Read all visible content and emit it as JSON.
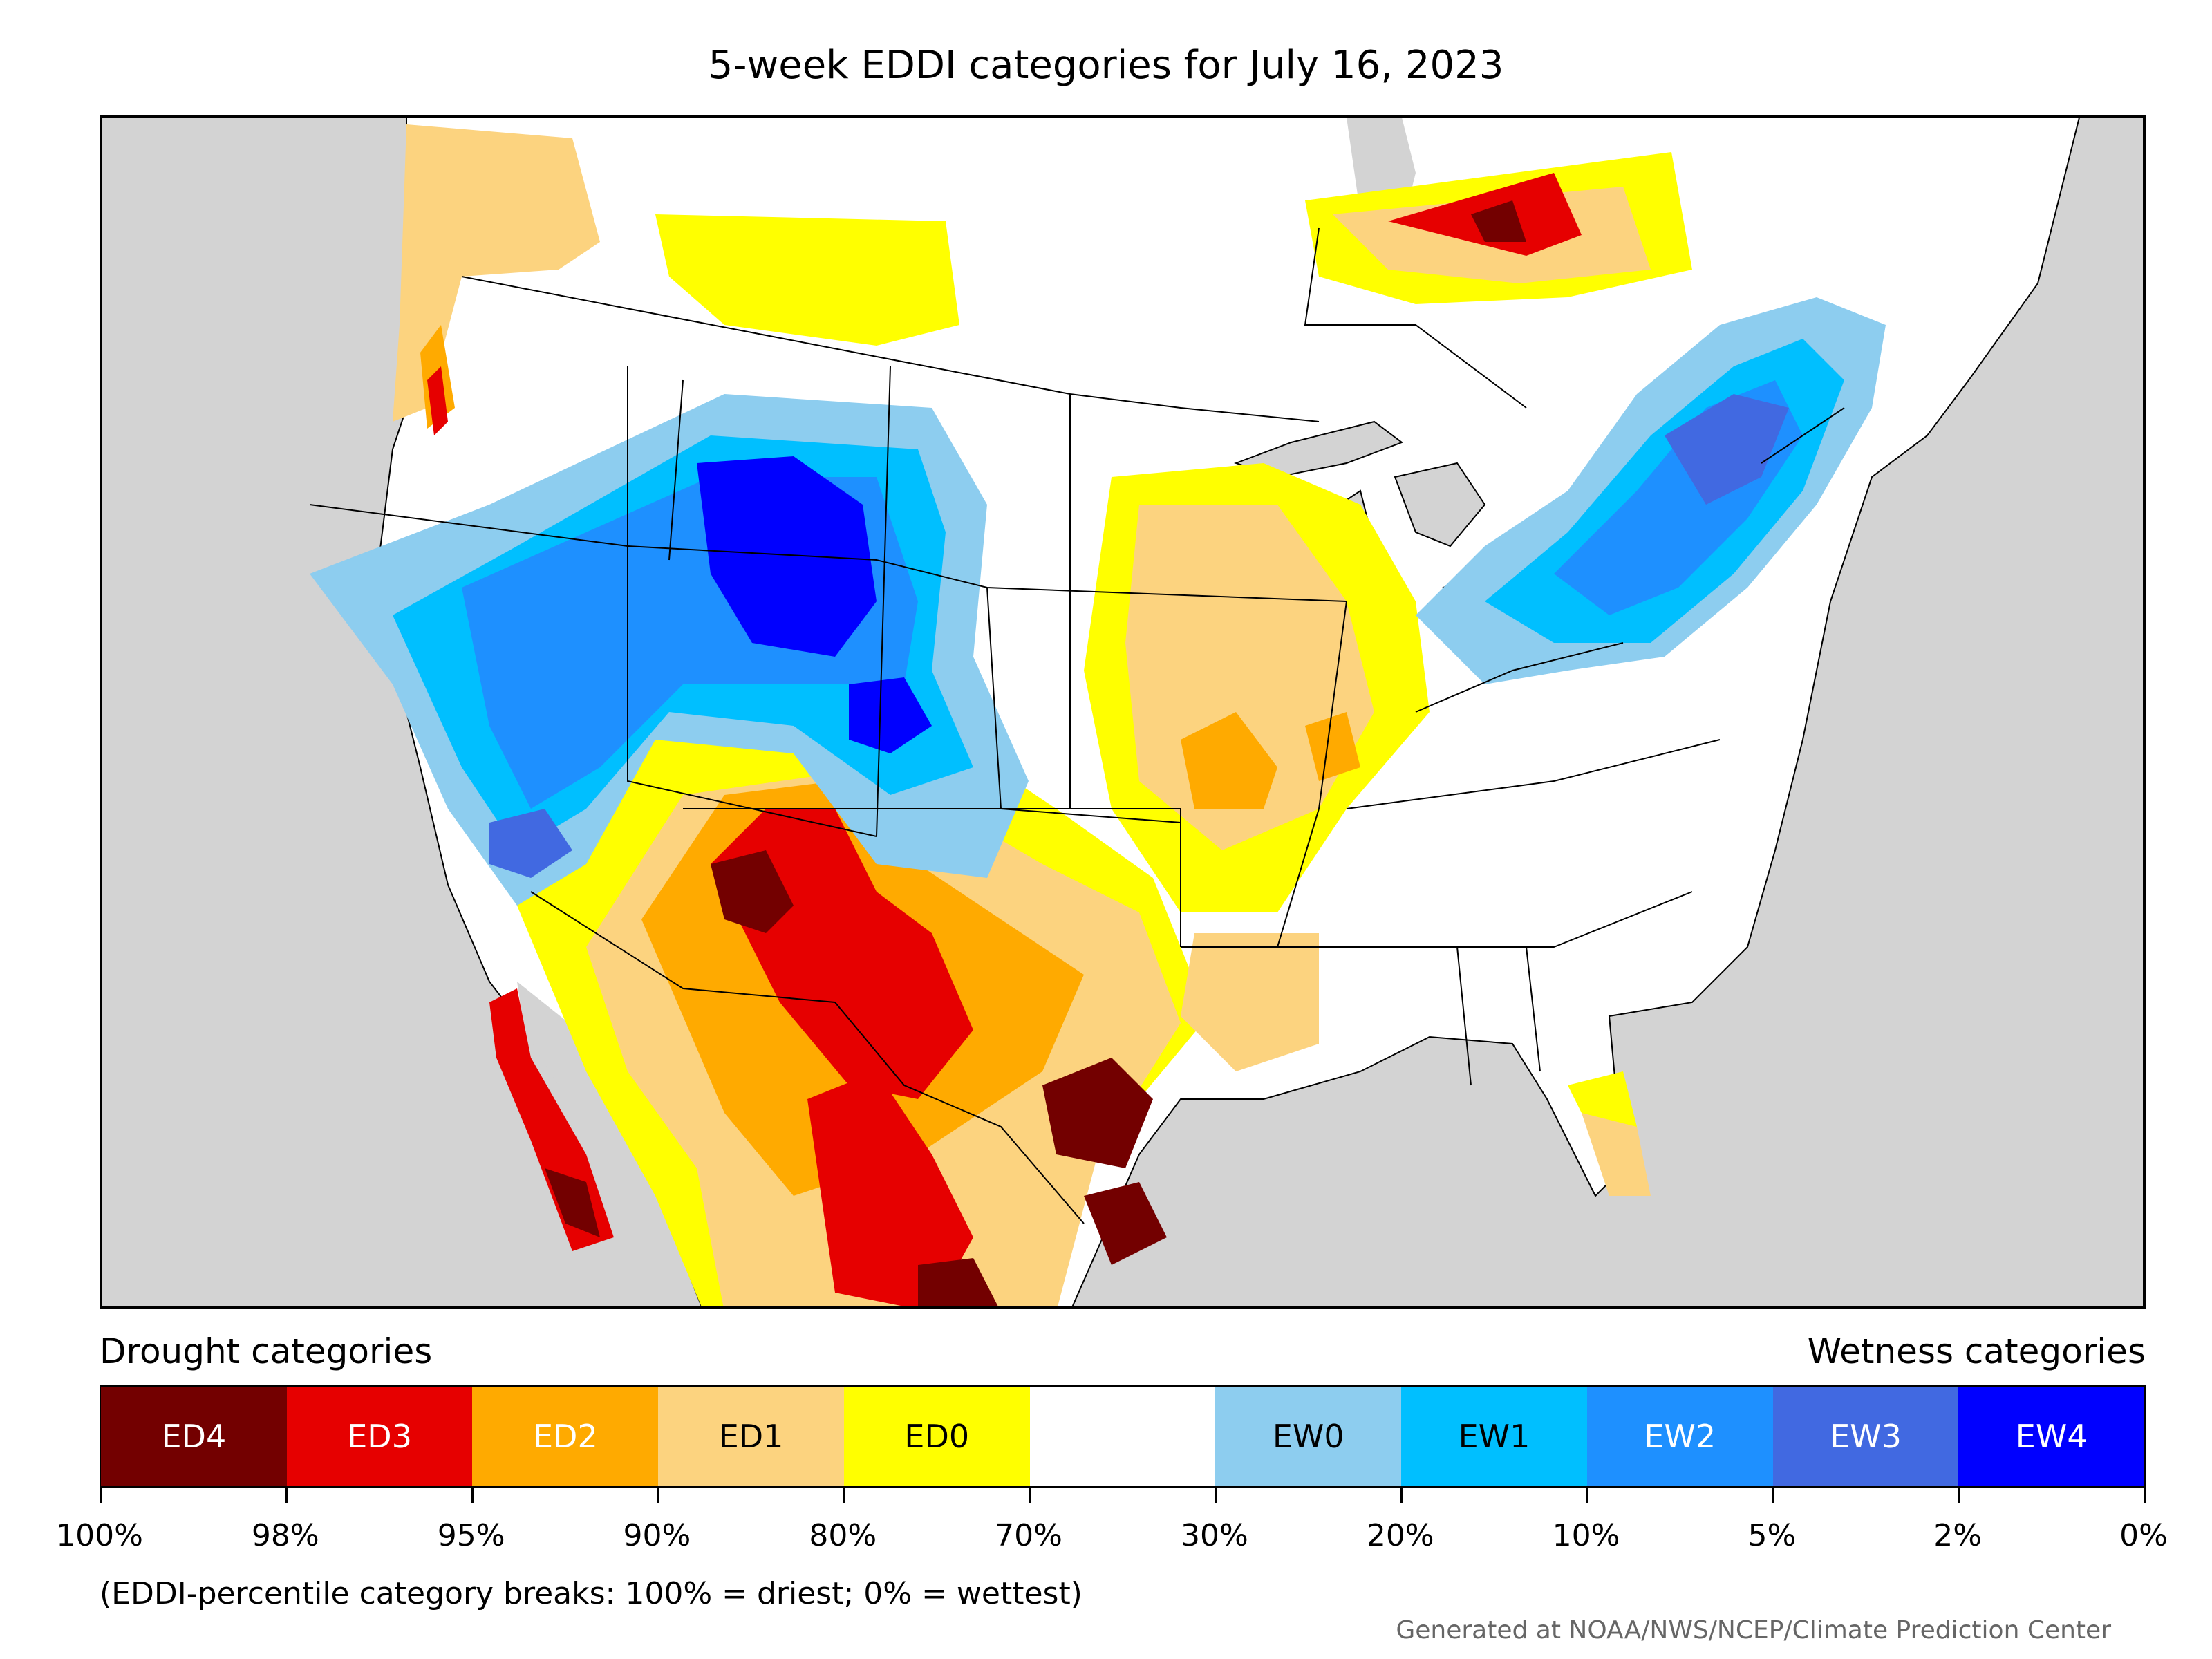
{
  "title": "5-week EDDI categories for July 16, 2023",
  "legend": {
    "drought_heading": "Drought categories",
    "wetness_heading": "Wetness categories",
    "categories": [
      {
        "label": "ED4",
        "color": "#730000",
        "text_color": "#ffffff"
      },
      {
        "label": "ED3",
        "color": "#e60000",
        "text_color": "#ffffff"
      },
      {
        "label": "ED2",
        "color": "#ffaa00",
        "text_color": "#ffffff"
      },
      {
        "label": "ED1",
        "color": "#fcd37f",
        "text_color": "#000000"
      },
      {
        "label": "ED0",
        "color": "#ffff00",
        "text_color": "#000000"
      },
      {
        "label": "",
        "color": "#ffffff",
        "text_color": "#000000"
      },
      {
        "label": "EW0",
        "color": "#8dcdef",
        "text_color": "#000000"
      },
      {
        "label": "EW1",
        "color": "#00bfff",
        "text_color": "#000000"
      },
      {
        "label": "EW2",
        "color": "#1e90ff",
        "text_color": "#ffffff"
      },
      {
        "label": "EW3",
        "color": "#4169e1",
        "text_color": "#ffffff"
      },
      {
        "label": "EW4",
        "color": "#0000ff",
        "text_color": "#ffffff"
      }
    ],
    "tick_labels": [
      "100%",
      "98%",
      "95%",
      "90%",
      "80%",
      "70%",
      "30%",
      "20%",
      "10%",
      "5%",
      "2%",
      "0%"
    ]
  },
  "note": "(EDDI-percentile category breaks: 100% = driest; 0% = wettest)",
  "credit": "Generated at NOAA/NWS/NCEP/Climate Prediction Center",
  "colors": {
    "land": "#ffffff",
    "ocean": "#d3d3d3",
    "border": "#000000"
  }
}
